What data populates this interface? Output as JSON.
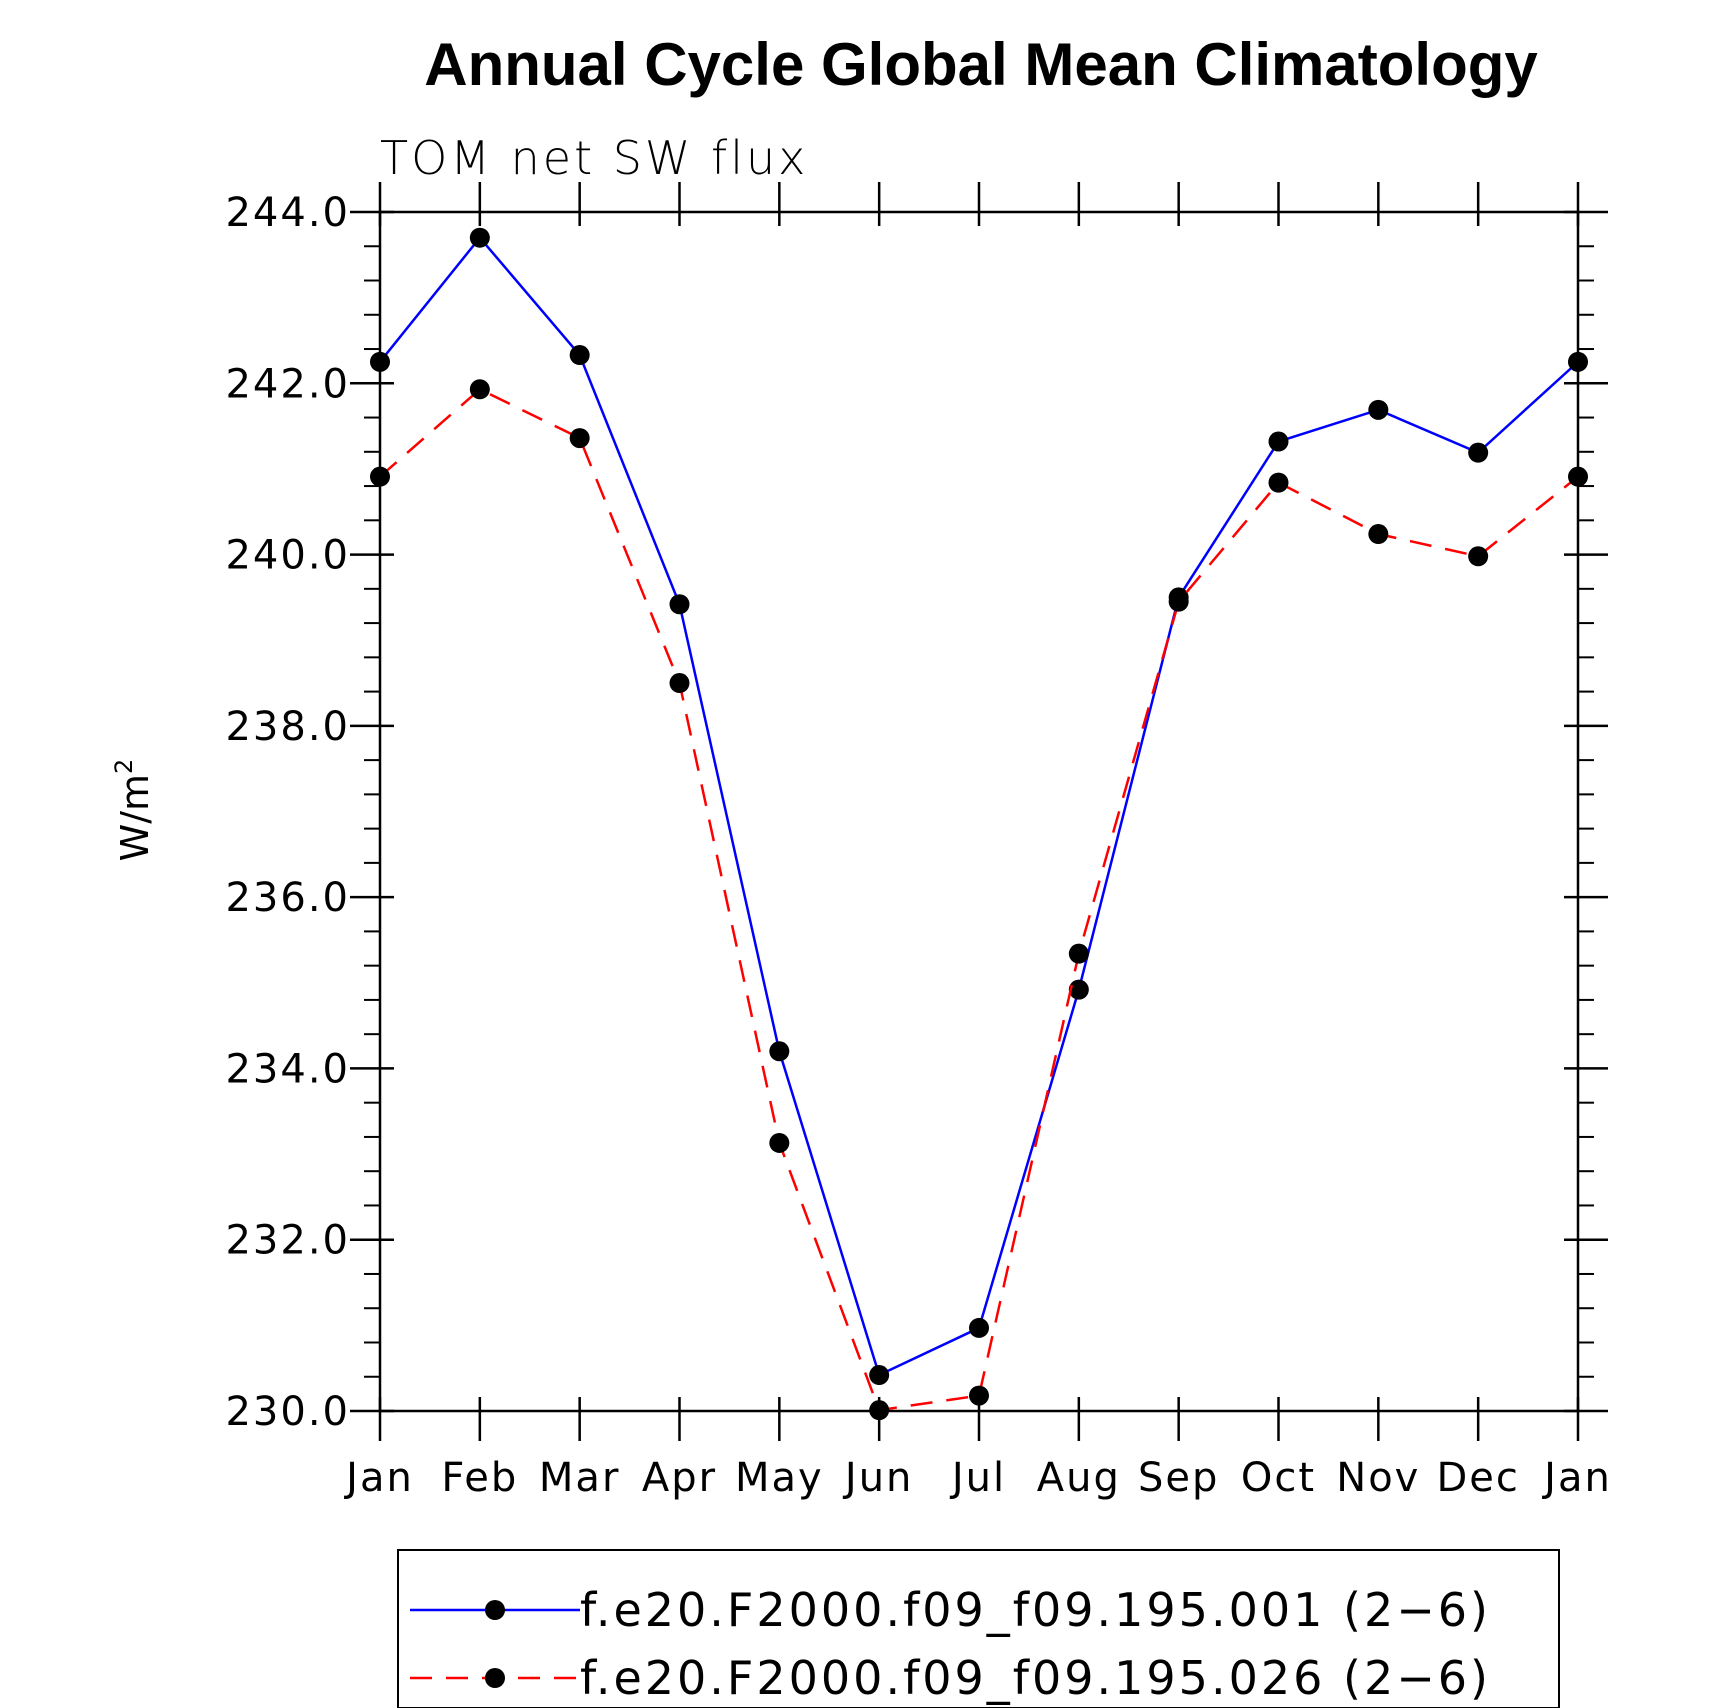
{
  "chart_data": {
    "type": "line",
    "title": "Annual Cycle Global Mean Climatology",
    "subtitle": "TOM net SW flux",
    "xlabel": "",
    "ylabel_base": "W/m",
    "ylabel_sup": "2",
    "categories": [
      "Jan",
      "Feb",
      "Mar",
      "Apr",
      "May",
      "Jun",
      "Jul",
      "Aug",
      "Sep",
      "Oct",
      "Nov",
      "Dec",
      "Jan"
    ],
    "ylim": [
      230.0,
      244.0
    ],
    "yticks": [
      "230.0",
      "232.0",
      "234.0",
      "236.0",
      "238.0",
      "240.0",
      "242.0",
      "244.0"
    ],
    "grid": false,
    "legend_position": "bottom",
    "series": [
      {
        "name": "f.e20.F2000.f09_f09.195.001 (2−6)",
        "color": "#0000ff",
        "dash": "solid",
        "values": [
          242.25,
          243.7,
          242.33,
          239.42,
          234.2,
          230.42,
          230.97,
          234.92,
          239.5,
          241.32,
          241.69,
          241.19,
          242.25
        ]
      },
      {
        "name": "f.e20.F2000.f09_f09.195.026 (2−6)",
        "color": "#ff0000",
        "dash": "dashed",
        "values": [
          240.91,
          241.93,
          241.36,
          238.5,
          233.13,
          230.01,
          230.18,
          235.34,
          239.45,
          240.84,
          240.24,
          239.98,
          240.91
        ]
      }
    ]
  }
}
